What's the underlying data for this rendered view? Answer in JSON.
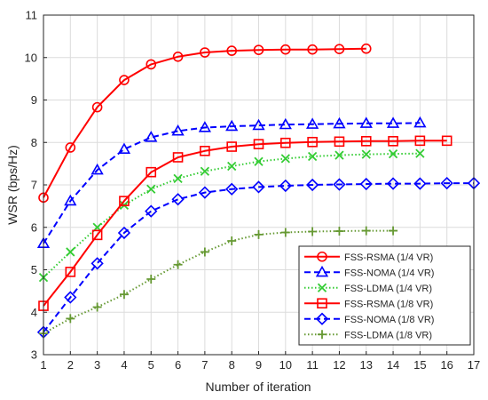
{
  "chart_data": {
    "type": "line",
    "title": "",
    "xlabel": "Number of iteration",
    "ylabel": "WSR (bps/Hz)",
    "xlim": [
      1,
      17
    ],
    "ylim": [
      3,
      11
    ],
    "xticks": [
      "1",
      "2",
      "3",
      "4",
      "5",
      "6",
      "7",
      "8",
      "9",
      "10",
      "11",
      "12",
      "13",
      "14",
      "15",
      "16",
      "17"
    ],
    "yticks": [
      "3",
      "4",
      "5",
      "6",
      "7",
      "8",
      "9",
      "10",
      "11"
    ],
    "grid": true,
    "legend_position": "bottom-right",
    "series": [
      {
        "name": "FSS-RSMA (1/4 VR)",
        "color": "#ff0000",
        "line_style": "solid",
        "marker": "circle",
        "x": [
          1,
          2,
          3,
          4,
          5,
          6,
          7,
          8,
          9,
          10,
          11,
          12,
          13
        ],
        "y": [
          6.7,
          7.88,
          8.83,
          9.47,
          9.84,
          10.02,
          10.12,
          10.16,
          10.18,
          10.19,
          10.19,
          10.2,
          10.21
        ]
      },
      {
        "name": "FSS-NOMA (1/4 VR)",
        "color": "#0000ff",
        "line_style": "dashed",
        "marker": "triangle",
        "x": [
          1,
          2,
          3,
          4,
          5,
          6,
          7,
          8,
          9,
          10,
          11,
          12,
          13,
          14,
          15
        ],
        "y": [
          5.62,
          6.62,
          7.35,
          7.84,
          8.12,
          8.27,
          8.35,
          8.38,
          8.4,
          8.42,
          8.43,
          8.44,
          8.45,
          8.45,
          8.46
        ]
      },
      {
        "name": "FSS-LDMA (1/4 VR)",
        "color": "#33cc33",
        "line_style": "dotted",
        "marker": "x",
        "x": [
          1,
          2,
          3,
          4,
          5,
          6,
          7,
          8,
          9,
          10,
          11,
          12,
          13,
          14,
          15
        ],
        "y": [
          4.82,
          5.42,
          6.0,
          6.52,
          6.9,
          7.15,
          7.32,
          7.44,
          7.55,
          7.62,
          7.67,
          7.7,
          7.72,
          7.73,
          7.74
        ]
      },
      {
        "name": "FSS-RSMA (1/8 VR)",
        "color": "#ff0000",
        "line_style": "solid",
        "marker": "square",
        "x": [
          1,
          2,
          3,
          4,
          5,
          6,
          7,
          8,
          9,
          10,
          11,
          12,
          13,
          14,
          15,
          16
        ],
        "y": [
          4.15,
          4.95,
          5.82,
          6.62,
          7.3,
          7.65,
          7.8,
          7.9,
          7.96,
          7.99,
          8.01,
          8.02,
          8.03,
          8.03,
          8.04,
          8.04
        ]
      },
      {
        "name": "FSS-NOMA (1/8 VR)",
        "color": "#0000ff",
        "line_style": "dashed",
        "marker": "diamond",
        "x": [
          1,
          2,
          3,
          4,
          5,
          6,
          7,
          8,
          9,
          10,
          11,
          12,
          13,
          14,
          15,
          16,
          17
        ],
        "y": [
          3.53,
          4.35,
          5.15,
          5.87,
          6.38,
          6.66,
          6.82,
          6.9,
          6.95,
          6.98,
          7.0,
          7.01,
          7.02,
          7.03,
          7.03,
          7.04,
          7.04
        ]
      },
      {
        "name": "FSS-LDMA (1/8 VR)",
        "color": "#669933",
        "line_style": "dotted",
        "marker": "plus",
        "x": [
          1,
          2,
          3,
          4,
          5,
          6,
          7,
          8,
          9,
          10,
          11,
          12,
          13,
          14
        ],
        "y": [
          3.5,
          3.85,
          4.12,
          4.42,
          4.78,
          5.12,
          5.42,
          5.68,
          5.83,
          5.88,
          5.9,
          5.91,
          5.92,
          5.92
        ]
      }
    ]
  }
}
